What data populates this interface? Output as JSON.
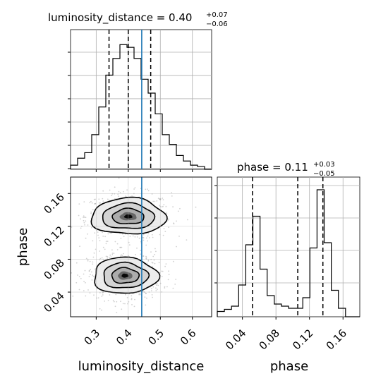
{
  "chart_data": {
    "type": "corner",
    "truth_color": "#1f77b4",
    "parameters": [
      {
        "name": "luminosity_distance",
        "xlabel": "luminosity_distance",
        "title_prefix": "luminosity_distance = 0.40",
        "title_sup": "+0.07",
        "title_sub": "−0.06",
        "median": 0.4,
        "q_low": 0.34,
        "q_high": 0.47,
        "truth": 0.442,
        "range": [
          0.22,
          0.66
        ],
        "ticks": [
          0.3,
          0.4,
          0.5,
          0.6
        ],
        "tick_labels": [
          "0.3",
          "0.4",
          "0.5",
          "0.6"
        ],
        "hist_edges": [
          0.22,
          0.242,
          0.264,
          0.286,
          0.308,
          0.33,
          0.352,
          0.374,
          0.396,
          0.418,
          0.44,
          0.462,
          0.484,
          0.506,
          0.528,
          0.55,
          0.572,
          0.594,
          0.616,
          0.638,
          0.66
        ],
        "hist_counts": [
          3,
          8,
          12,
          25,
          45,
          68,
          80,
          90,
          88,
          80,
          65,
          55,
          40,
          25,
          18,
          10,
          6,
          3,
          2,
          0
        ]
      },
      {
        "name": "phase",
        "xlabel": "phase",
        "ylabel": "phase",
        "title_prefix": "phase = 0.11",
        "title_sup": "+0.03",
        "title_sub": "−0.05",
        "median": 0.106,
        "q_low": 0.052,
        "q_high": 0.136,
        "range": [
          0.01,
          0.18
        ],
        "ticks": [
          0.04,
          0.08,
          0.12,
          0.16
        ],
        "tick_labels": [
          "0.04",
          "0.08",
          "0.12",
          "0.16"
        ],
        "hist_edges": [
          0.01,
          0.0185,
          0.027,
          0.0355,
          0.044,
          0.0525,
          0.061,
          0.0695,
          0.078,
          0.0865,
          0.095,
          0.1035,
          0.112,
          0.1205,
          0.129,
          0.1375,
          0.146,
          0.1545,
          0.163,
          0.1715,
          0.18
        ],
        "hist_counts": [
          5,
          7,
          10,
          30,
          68,
          95,
          45,
          20,
          12,
          10,
          8,
          8,
          18,
          65,
          120,
          70,
          25,
          8,
          0,
          0
        ]
      }
    ],
    "joint": {
      "x": "luminosity_distance",
      "y": "phase",
      "modes": [
        {
          "x": 0.4,
          "y": 0.132,
          "sx": 0.058,
          "sy": 0.011
        },
        {
          "x": 0.39,
          "y": 0.06,
          "sx": 0.05,
          "sy": 0.011
        }
      ]
    }
  }
}
